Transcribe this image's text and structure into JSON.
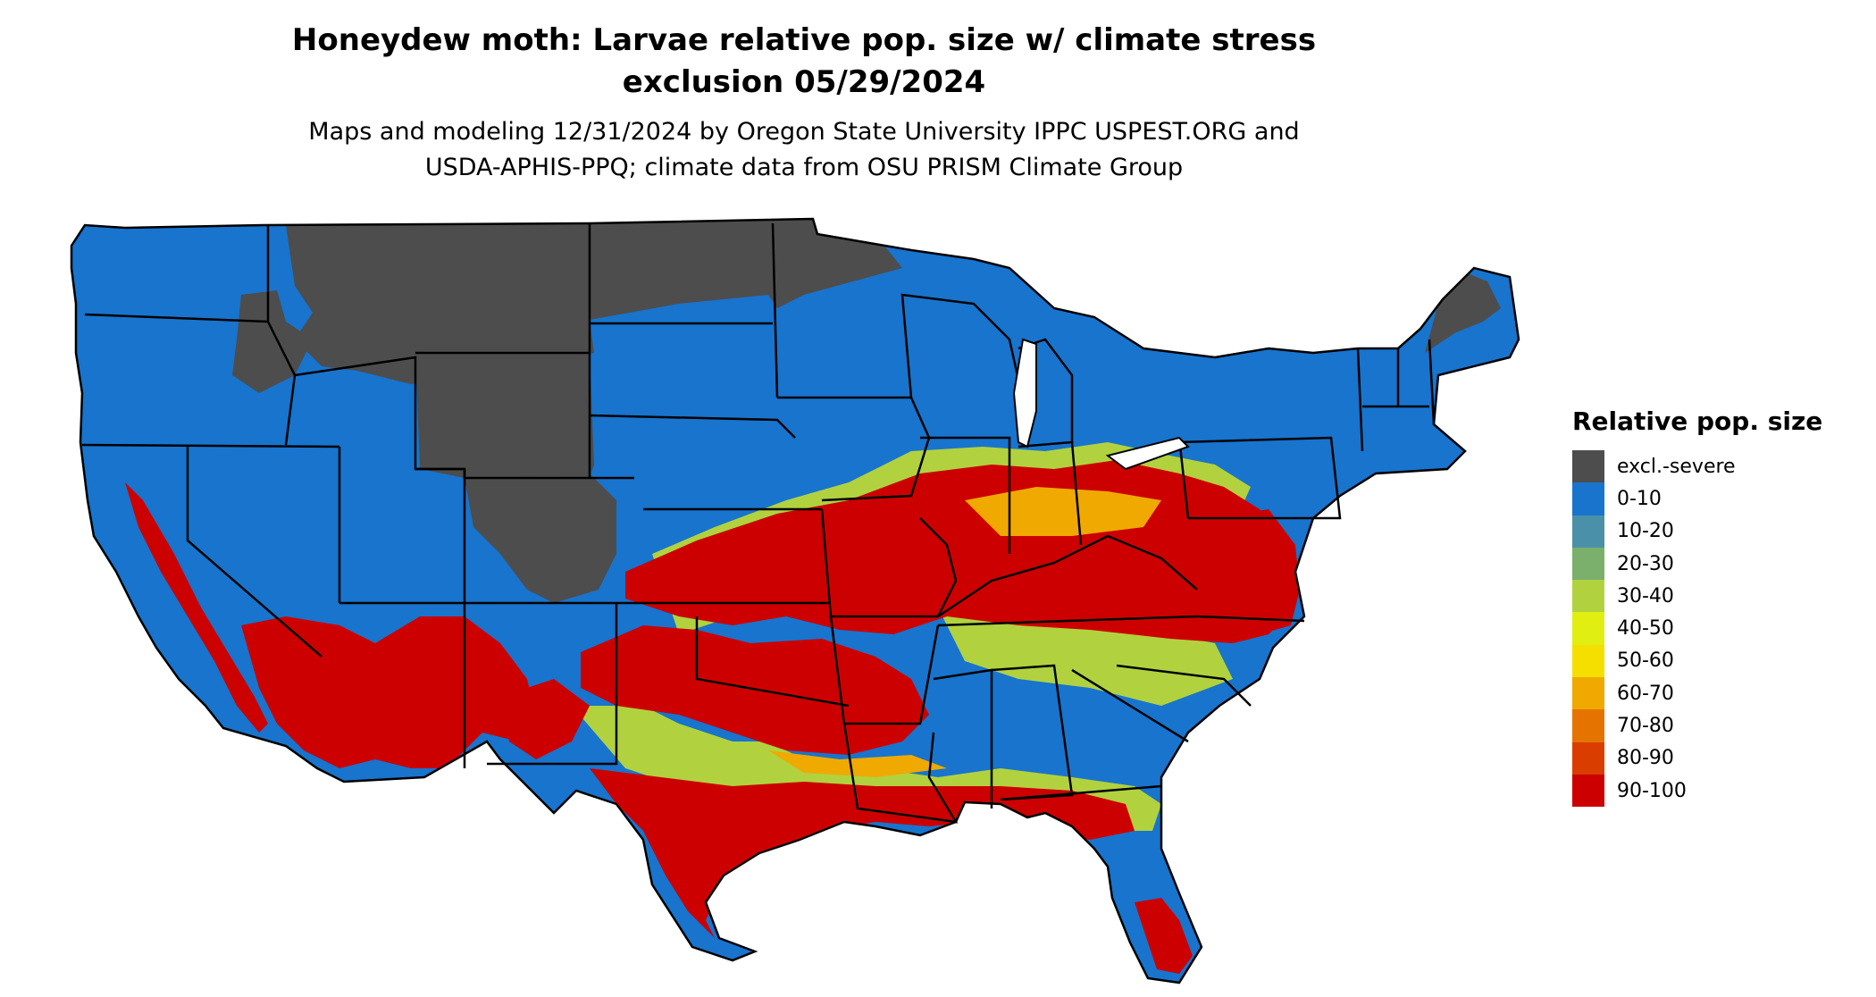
{
  "title": {
    "line1": "Honeydew moth: Larvae relative pop. size w/ climate stress",
    "line2": "exclusion 05/29/2024"
  },
  "subtitle": {
    "line1": "Maps and modeling 12/31/2024 by Oregon State University IPPC USPEST.ORG and",
    "line2": "USDA-APHIS-PPQ; climate data from OSU PRISM Climate Group"
  },
  "legend": {
    "title": "Relative pop. size",
    "items": [
      {
        "label": "excl.-severe",
        "color": "#4d4d4d"
      },
      {
        "label": "0-10",
        "color": "#1874cd"
      },
      {
        "label": "10-20",
        "color": "#4a90a8"
      },
      {
        "label": "20-30",
        "color": "#7aaf6c"
      },
      {
        "label": "30-40",
        "color": "#b1d23e"
      },
      {
        "label": "40-50",
        "color": "#e1ee12"
      },
      {
        "label": "50-60",
        "color": "#f5df00"
      },
      {
        "label": "60-70",
        "color": "#efa900"
      },
      {
        "label": "70-80",
        "color": "#e57300"
      },
      {
        "label": "80-90",
        "color": "#da3d00"
      },
      {
        "label": "90-100",
        "color": "#cd0000"
      }
    ]
  }
}
